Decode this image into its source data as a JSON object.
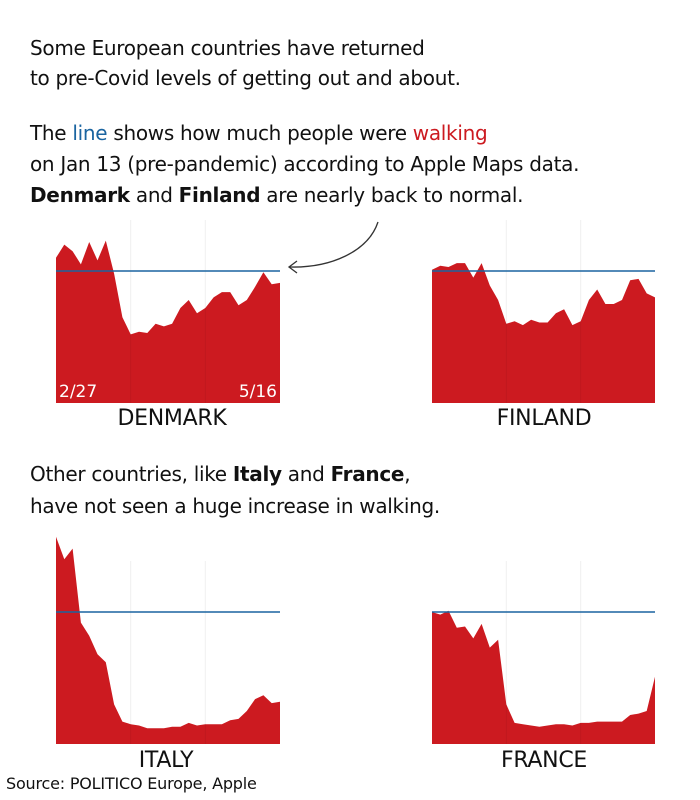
{
  "intro": {
    "line1": "Some European countries have returned",
    "line2": "to pre-Covid levels of getting out and about.",
    "p2_a": "The ",
    "p2_line": "line",
    "p2_b": " shows how much people were ",
    "p2_walking": "walking",
    "p2_line2": "on Jan 13 (pre-pandemic) according to Apple Maps data.",
    "p2_bold1": "Denmark",
    "p2_mid": " and ",
    "p2_bold2": "Finland",
    "p2_end": " are nearly back to normal."
  },
  "middle": {
    "a": "Other countries, like ",
    "bold1": "Italy",
    "mid": " and ",
    "bold2": "France",
    "end": ",",
    "line2": "have not seen a huge increase in walking."
  },
  "source": "Source: POLITICO Europe, Apple",
  "colors": {
    "area": "#cc1a20",
    "baseline": "#1a64a0",
    "line_word": "#1a64a0",
    "walking_word": "#cc1a20"
  },
  "chart_data": [
    {
      "type": "area",
      "title": "DENMARK",
      "x_start": "2/27",
      "x_end": "5/16",
      "baseline": 100,
      "ylim": [
        0,
        160
      ],
      "grid": false,
      "values": [
        110,
        120,
        115,
        105,
        122,
        108,
        123,
        98,
        65,
        52,
        54,
        53,
        60,
        58,
        60,
        72,
        78,
        68,
        72,
        80,
        84,
        84,
        74,
        78,
        88,
        99,
        90,
        91
      ]
    },
    {
      "type": "area",
      "title": "FINLAND",
      "x_start": "2/27",
      "x_end": "5/16",
      "baseline": 100,
      "ylim": [
        0,
        160
      ],
      "grid": false,
      "values": [
        101,
        104,
        103,
        106,
        106,
        95,
        106,
        89,
        78,
        60,
        62,
        59,
        63,
        61,
        61,
        68,
        71,
        59,
        62,
        78,
        86,
        75,
        75,
        78,
        93,
        94,
        83,
        80
      ]
    },
    {
      "type": "area",
      "title": "ITALY",
      "x_start": "2/27",
      "x_end": "5/16",
      "baseline": 100,
      "ylim": [
        0,
        160
      ],
      "grid": false,
      "values": [
        157,
        140,
        148,
        92,
        82,
        68,
        62,
        30,
        17,
        15,
        14,
        12,
        12,
        12,
        13,
        13,
        16,
        14,
        15,
        15,
        15,
        18,
        19,
        25,
        34,
        37,
        31,
        32
      ]
    },
    {
      "type": "area",
      "title": "FRANCE",
      "x_start": "2/27",
      "x_end": "5/16",
      "baseline": 100,
      "ylim": [
        0,
        160
      ],
      "grid": false,
      "values": [
        100,
        98,
        101,
        88,
        89,
        80,
        91,
        73,
        79,
        30,
        16,
        15,
        14,
        13,
        14,
        15,
        15,
        14,
        16,
        16,
        17,
        17,
        17,
        17,
        22,
        23,
        25,
        51
      ]
    }
  ]
}
